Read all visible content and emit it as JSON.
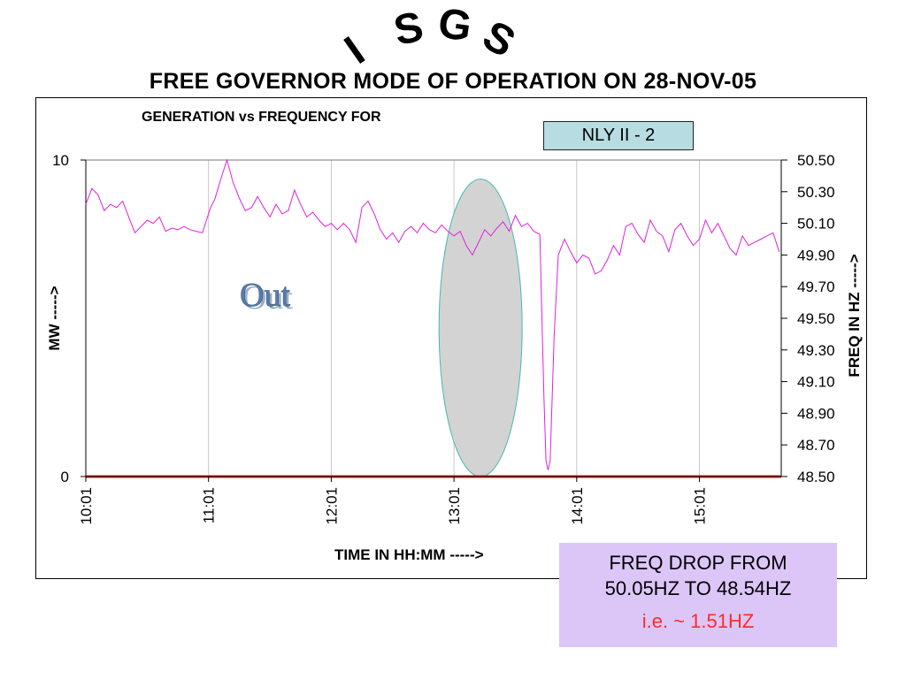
{
  "logo": {
    "text": "ISGS"
  },
  "page_title": "FREE GOVERNOR MODE OF OPERATION ON 28-NOV-05",
  "unit_label": "NLY II - 2",
  "annotation_out": "Out",
  "note": {
    "line1": "FREQ DROP FROM",
    "line2": "50.05HZ TO 48.54HZ",
    "line3": "i.e. ~ 1.51HZ"
  },
  "colors": {
    "frequency_line": "#e020e0",
    "generation_line": "#e02020",
    "highlight_fill": "#d3d3d3",
    "highlight_stroke": "#49b8b0",
    "grid": "#c8c8c8",
    "unit_box": "#b7dde3",
    "note_box": "#dcc6f7",
    "note_red": "#ff2a2a"
  },
  "chart_data": {
    "type": "line",
    "title": "GENERATION vs FREQUENCY FOR",
    "xlabel": "TIME IN HH:MM ----->",
    "ylabel_left": "MW ----->",
    "ylabel_right": "FREQ IN HZ ----->",
    "x_ticks": [
      "10:01",
      "11:01",
      "12:01",
      "13:01",
      "14:01",
      "15:01"
    ],
    "x_range_minutes": [
      601,
      941
    ],
    "y_left_range": [
      0,
      10
    ],
    "y_left_ticks": [
      "0",
      "10"
    ],
    "y_right_range": [
      48.5,
      50.5
    ],
    "y_right_ticks": [
      "48.50",
      "48.70",
      "48.90",
      "49.10",
      "49.30",
      "49.50",
      "49.70",
      "49.90",
      "50.10",
      "50.30",
      "50.50"
    ],
    "grid": "vertical",
    "series": [
      {
        "name": "",
        "axis": "right",
        "x": [
          601,
          604,
          607,
          610,
          613,
          616,
          619,
          622,
          625,
          628,
          631,
          634,
          637,
          640,
          643,
          646,
          649,
          652,
          655,
          658,
          660,
          662,
          664,
          667,
          670,
          673,
          676,
          679,
          682,
          685,
          688,
          691,
          694,
          697,
          700,
          703,
          706,
          709,
          712,
          715,
          718,
          721,
          724,
          727,
          730,
          733,
          736,
          739,
          742,
          745,
          748,
          751,
          754,
          757,
          760,
          763,
          766,
          769,
          772,
          775,
          778,
          781,
          784,
          787,
          790,
          793,
          796,
          799,
          802,
          805,
          808,
          811,
          814,
          817,
          820,
          823,
          824,
          825,
          826,
          827,
          828,
          830,
          832,
          835,
          838,
          841,
          844,
          847,
          850,
          853,
          856,
          859,
          862,
          865,
          868,
          871,
          874,
          877,
          880,
          883,
          886,
          889,
          892,
          895,
          898,
          901,
          904,
          907,
          910,
          913,
          916,
          919,
          922,
          925,
          928,
          931,
          934,
          937,
          940
        ],
        "values": [
          50.22,
          50.32,
          50.28,
          50.18,
          50.22,
          50.2,
          50.24,
          50.14,
          50.04,
          50.08,
          50.12,
          50.1,
          50.14,
          50.05,
          50.07,
          50.06,
          50.08,
          50.06,
          50.05,
          50.04,
          50.12,
          50.2,
          50.25,
          50.38,
          50.5,
          50.36,
          50.26,
          50.18,
          50.2,
          50.27,
          50.2,
          50.14,
          50.22,
          50.16,
          50.18,
          50.31,
          50.22,
          50.14,
          50.17,
          50.12,
          50.08,
          50.1,
          50.06,
          50.1,
          50.06,
          49.98,
          50.2,
          50.24,
          50.16,
          50.06,
          50.0,
          50.04,
          49.98,
          50.05,
          50.08,
          50.04,
          50.1,
          50.06,
          50.04,
          50.09,
          50.05,
          50.02,
          50.05,
          49.96,
          49.9,
          49.98,
          50.06,
          50.02,
          50.07,
          50.11,
          50.05,
          50.15,
          50.08,
          50.1,
          50.05,
          50.03,
          49.5,
          49.0,
          48.6,
          48.54,
          48.6,
          49.4,
          49.9,
          50.0,
          49.92,
          49.85,
          49.9,
          49.88,
          49.78,
          49.8,
          49.87,
          49.96,
          49.9,
          50.08,
          50.1,
          50.03,
          49.98,
          50.12,
          50.05,
          50.02,
          49.92,
          50.06,
          50.1,
          50.02,
          49.96,
          50.0,
          50.12,
          50.04,
          50.1,
          50.02,
          49.94,
          49.9,
          50.02,
          49.96,
          49.98,
          50.0,
          50.02,
          50.04,
          49.92
        ]
      },
      {
        "name": "",
        "axis": "left",
        "x": [
          601,
          941
        ],
        "values": [
          0,
          0
        ]
      }
    ],
    "highlight": {
      "center_minutes": 794,
      "y_top_hz": 50.38,
      "y_bottom_hz": 48.5
    }
  }
}
